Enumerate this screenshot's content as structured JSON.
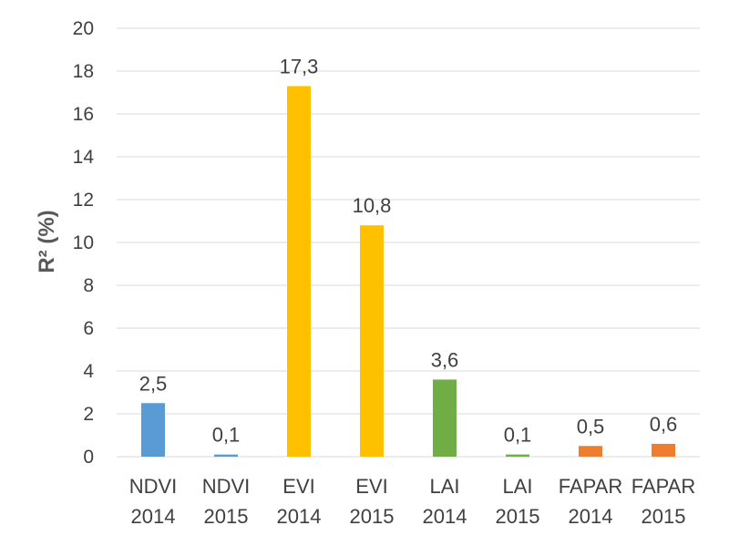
{
  "chart_data": {
    "type": "bar",
    "title": "",
    "xlabel": "",
    "ylabel": "R² (%)",
    "ylim": [
      0,
      20
    ],
    "yticks": [
      0,
      2,
      4,
      6,
      8,
      10,
      12,
      14,
      16,
      18,
      20
    ],
    "grid": true,
    "legend": "none",
    "categories": [
      [
        "NDVI",
        "2014"
      ],
      [
        "NDVI",
        "2015"
      ],
      [
        "EVI",
        "2014"
      ],
      [
        "EVI",
        "2015"
      ],
      [
        "LAI",
        "2014"
      ],
      [
        "LAI",
        "2015"
      ],
      [
        "FAPAR",
        "2014"
      ],
      [
        "FAPAR",
        "2015"
      ]
    ],
    "values": [
      2.5,
      0.1,
      17.3,
      10.8,
      3.6,
      0.1,
      0.5,
      0.6
    ],
    "data_labels": [
      "2,5",
      "0,1",
      "17,3",
      "10,8",
      "3,6",
      "0,1",
      "0,5",
      "0,6"
    ],
    "colors": [
      "#5b9bd5",
      "#5b9bd5",
      "#ffc000",
      "#ffc000",
      "#70ad47",
      "#70ad47",
      "#ed7d31",
      "#ed7d31"
    ]
  }
}
